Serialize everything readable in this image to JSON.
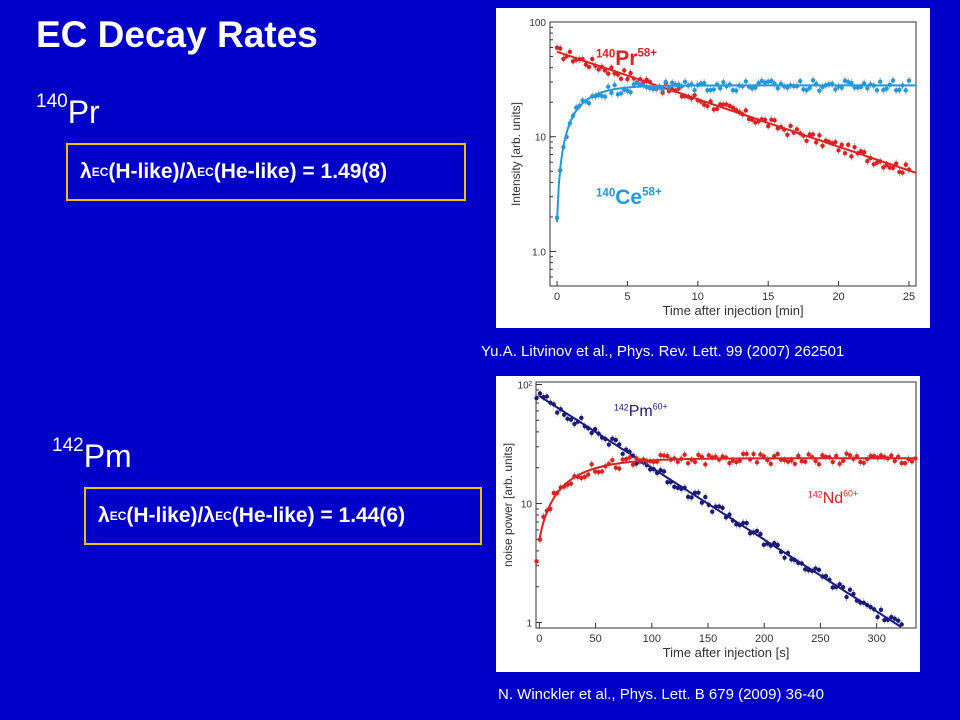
{
  "slide": {
    "title": "EC Decay Rates",
    "section1": {
      "iso_mass": "140",
      "iso_symbol": "Pr",
      "formula": {
        "lambda": "λ",
        "ec": "EC",
        "h_like": "(H-like)/",
        "he_like": "(He-like) = 1.49(8)"
      },
      "citation": "Yu.A. Litvinov et al., Phys. Rev. Lett. 99 (2007) 262501"
    },
    "section2": {
      "iso_mass": "142",
      "iso_symbol": "Pm",
      "formula": {
        "lambda": "λ",
        "ec": "EC",
        "h_like": "(H-like)/",
        "he_like": "(He-like) = 1.44(6)"
      },
      "citation": "N. Winckler et al., Phys. Lett. B 679 (2009) 36-40"
    }
  },
  "chart_data": [
    {
      "type": "scatter",
      "xlabel": "Time after injection [min]",
      "ylabel": "Intensity [arb. units]",
      "xlim": [
        -0.5,
        25.5
      ],
      "ylim": [
        0.5,
        100
      ],
      "yscale": "log",
      "xticks": [
        0,
        5,
        10,
        15,
        20,
        25
      ],
      "yticks": [
        1,
        10,
        100
      ],
      "ytick_labels": [
        "1.0",
        "10",
        "100"
      ],
      "series": [
        {
          "mass": "140",
          "symbol": "Pr",
          "charge": "58+",
          "color": "#dd2222",
          "model": "decay",
          "params": {
            "a": 55,
            "tau": 10.5
          }
        },
        {
          "mass": "140",
          "symbol": "Ce",
          "charge": "58+",
          "color": "#2299dd",
          "model": "growth",
          "params": {
            "a": 28,
            "tau": 1.6,
            "y0": 1.8
          }
        }
      ]
    },
    {
      "type": "scatter",
      "xlabel": "Time after injection [s]",
      "ylabel": "noise power [arb. units]",
      "xlim": [
        -3,
        335
      ],
      "ylim": [
        0.9,
        105
      ],
      "yscale": "log",
      "xticks": [
        0,
        50,
        100,
        150,
        200,
        250,
        300
      ],
      "yticks": [
        1,
        10,
        100
      ],
      "ytick_labels": [
        "1",
        "10",
        "10²"
      ],
      "series": [
        {
          "mass": "142",
          "symbol": "Pm",
          "charge": "60+",
          "color": "#1a1a7a",
          "model": "decay",
          "params": {
            "a": 80,
            "tau": 72
          }
        },
        {
          "mass": "142",
          "symbol": "Nd",
          "charge": "60+",
          "color": "#dd2222",
          "model": "growth",
          "params": {
            "a": 24,
            "tau": 33,
            "y0": 5
          }
        }
      ]
    }
  ]
}
